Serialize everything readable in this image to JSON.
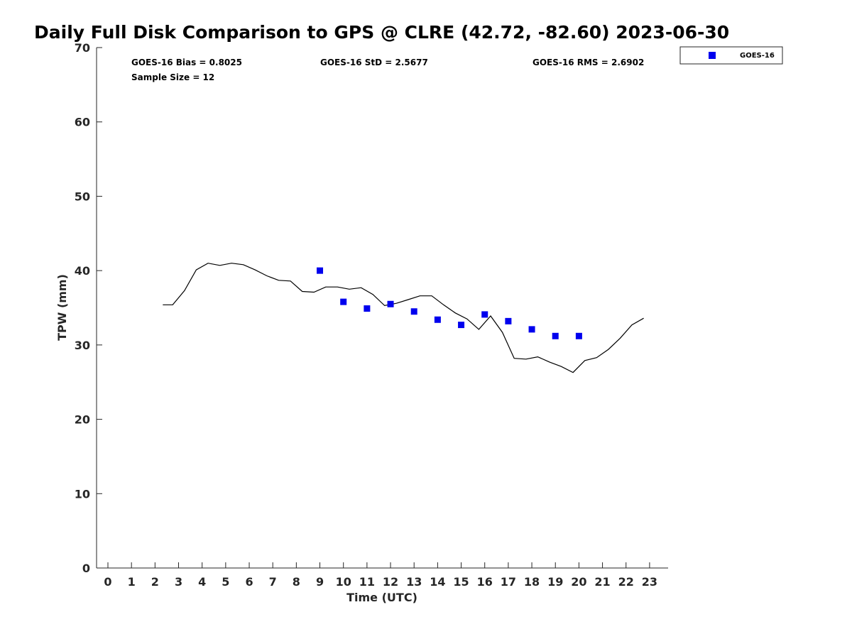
{
  "chart_data": {
    "type": "scatter",
    "title": "Daily Full Disk Comparison to GPS @ CLRE (42.72, -82.60) 2023-06-30",
    "xlabel": "Time (UTC)",
    "ylabel": "TPW (mm)",
    "xlim": [
      -0.5,
      23.8
    ],
    "ylim": [
      0,
      70
    ],
    "x_ticks": [
      "0",
      "1",
      "2",
      "3",
      "4",
      "5",
      "6",
      "7",
      "8",
      "9",
      "10",
      "11",
      "12",
      "13",
      "14",
      "15",
      "16",
      "17",
      "18",
      "19",
      "20",
      "21",
      "22",
      "23"
    ],
    "y_ticks": [
      "0",
      "10",
      "20",
      "30",
      "40",
      "50",
      "60",
      "70"
    ],
    "grid": false,
    "legend_position": "top-right, outside plot",
    "stats": {
      "bias": "GOES-16 Bias = 0.8025",
      "std": "GOES-16 StD = 2.5677",
      "rms": "GOES-16 RMS = 2.6902",
      "sample_size": "Sample Size = 12"
    },
    "series": [
      {
        "name": "GOES-16",
        "kind": "scatter",
        "marker": "square",
        "color": "#0000ee",
        "x": [
          9.0,
          10.0,
          11.0,
          12.0,
          13.0,
          14.0,
          15.0,
          16.0,
          17.0,
          18.0,
          19.0,
          20.0
        ],
        "y": [
          40.0,
          35.8,
          34.9,
          35.5,
          34.5,
          33.4,
          32.7,
          34.1,
          33.2,
          32.1,
          31.2,
          31.2
        ]
      },
      {
        "kind": "line",
        "color": "#000000",
        "x": [
          2.33,
          2.75,
          3.25,
          3.75,
          4.25,
          4.75,
          5.25,
          5.75,
          6.25,
          6.75,
          7.25,
          7.75,
          8.25,
          8.75,
          9.25,
          9.75,
          10.25,
          10.75,
          11.25,
          11.75,
          12.25,
          12.75,
          13.25,
          13.75,
          14.25,
          14.75,
          15.25,
          15.75,
          16.25,
          16.75,
          17.25,
          17.75,
          18.25,
          18.75,
          19.25,
          19.75,
          20.25,
          20.75,
          21.25,
          21.75,
          22.25,
          22.75
        ],
        "y": [
          35.4,
          35.4,
          37.3,
          40.1,
          41.0,
          40.7,
          41.0,
          40.8,
          40.1,
          39.3,
          38.7,
          38.6,
          37.2,
          37.1,
          37.8,
          37.8,
          37.5,
          37.7,
          36.8,
          35.3,
          35.6,
          36.1,
          36.6,
          36.6,
          35.4,
          34.3,
          33.5,
          32.1,
          33.9,
          31.7,
          28.2,
          28.1,
          28.4,
          27.7,
          27.1,
          26.3,
          27.9,
          28.3,
          29.4,
          30.9,
          32.7,
          33.6
        ]
      }
    ]
  }
}
